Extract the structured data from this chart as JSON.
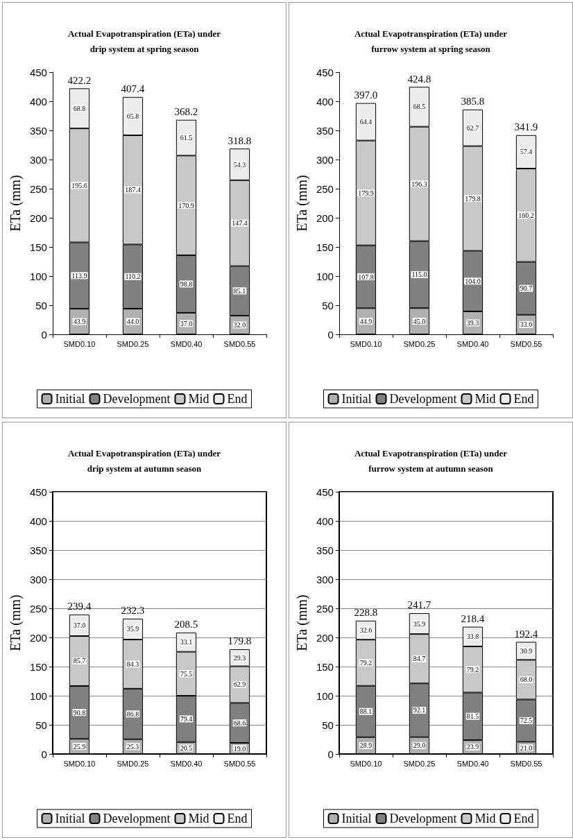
{
  "chart_data": [
    {
      "type": "bar",
      "stacked": true,
      "title": "Actual Evapotranspiration (ETa) under\ndrip system at spring season",
      "ylabel": "ETa (mm)",
      "categories": [
        "SMD0.10",
        "SMD0.25",
        "SMD0.40",
        "SMD0.55"
      ],
      "series": [
        {
          "name": "Initial",
          "color": "#b0b0b0",
          "values": [
            43.9,
            44.0,
            37.0,
            32.0
          ],
          "value_labels": [
            "43.9",
            "44.0",
            "37.0",
            "32.0"
          ]
        },
        {
          "name": "Development",
          "color": "#808080",
          "values": [
            113.9,
            110.2,
            98.8,
            85.1
          ]
        },
        {
          "name": "Mid",
          "color": "#c8c8c8",
          "values": [
            195.6,
            187.4,
            170.9,
            147.4
          ]
        },
        {
          "name": "End",
          "color": "#ececec",
          "values": [
            68.8,
            65.8,
            61.5,
            54.3
          ]
        }
      ],
      "totals": [
        "422.2",
        "407.4",
        "368.2",
        "318.8"
      ],
      "ylim": [
        0,
        450
      ],
      "yticks": [
        0,
        50,
        100,
        150,
        200,
        250,
        300,
        350,
        400,
        450
      ],
      "grid": false,
      "legend": "bottom",
      "data_labels": true
    },
    {
      "type": "bar",
      "stacked": true,
      "title": "Actual Evapotranspiration (ETa) under\nfurrow system at spring season",
      "ylabel": "ETa (mm)",
      "categories": [
        "SMD0.10",
        "SMD0.25",
        "SMD0.40",
        "SMD0.55"
      ],
      "series": [
        {
          "name": "Initial",
          "color": "#b0b0b0",
          "values": [
            44.9,
            45.0,
            39.3,
            33.6
          ],
          "value_labels": [
            "44.9",
            "45.0",
            "39.3",
            "33.6"
          ]
        },
        {
          "name": "Development",
          "color": "#808080",
          "values": [
            107.8,
            115.0,
            104.0,
            90.7
          ],
          "value_labels": [
            "107.8",
            "115.0",
            "104.0",
            "90.7"
          ]
        },
        {
          "name": "Mid",
          "color": "#c8c8c8",
          "values": [
            179.9,
            196.3,
            179.8,
            160.2
          ]
        },
        {
          "name": "End",
          "color": "#ececec",
          "values": [
            64.4,
            68.5,
            62.7,
            57.4
          ]
        }
      ],
      "totals": [
        "397.0",
        "424.8",
        "385.8",
        "341.9"
      ],
      "ylim": [
        0,
        450
      ],
      "yticks": [
        0,
        50,
        100,
        150,
        200,
        250,
        300,
        350,
        400,
        450
      ],
      "grid": false,
      "legend": "bottom",
      "data_labels": true
    },
    {
      "type": "bar",
      "stacked": true,
      "title": "Actual Evapotranspiration (ETa) under\ndrip system at autumn season",
      "ylabel": "ETa (mm)",
      "categories": [
        "SMD0.10",
        "SMD0.25",
        "SMD0.40",
        "SMD0.55"
      ],
      "series": [
        {
          "name": "Initial",
          "color": "#b0b0b0",
          "values": [
            25.9,
            25.3,
            20.5,
            19.0
          ],
          "value_labels": [
            "25.9",
            "25.3",
            "20.5",
            "19.0"
          ]
        },
        {
          "name": "Development",
          "color": "#808080",
          "values": [
            90.8,
            86.8,
            79.4,
            68.6
          ]
        },
        {
          "name": "Mid",
          "color": "#c8c8c8",
          "values": [
            85.7,
            84.3,
            75.5,
            62.9
          ]
        },
        {
          "name": "End",
          "color": "#ececec",
          "values": [
            37.0,
            35.9,
            33.1,
            29.3
          ],
          "value_labels": [
            "37.0",
            "35.9",
            "33.1",
            "29.3"
          ]
        }
      ],
      "totals": [
        "239.4",
        "232.3",
        "208.5",
        "179.8"
      ],
      "ylim": [
        0,
        450
      ],
      "yticks": [
        0,
        50,
        100,
        150,
        200,
        250,
        300,
        350,
        400,
        450
      ],
      "grid": "y",
      "legend": "bottom",
      "data_labels": true
    },
    {
      "type": "bar",
      "stacked": true,
      "title": "Actual Evapotranspiration (ETa) under\nfurrow system at autumn season",
      "ylabel": "ETa (mm)",
      "categories": [
        "SMD0.10",
        "SMD0.25",
        "SMD0.40",
        "SMD0.55"
      ],
      "series": [
        {
          "name": "Initial",
          "color": "#b0b0b0",
          "values": [
            28.9,
            29.0,
            23.9,
            21.0
          ],
          "value_labels": [
            "28.9",
            "29.0",
            "23.9",
            "21.0"
          ]
        },
        {
          "name": "Development",
          "color": "#808080",
          "values": [
            88.1,
            92.1,
            81.5,
            72.5
          ]
        },
        {
          "name": "Mid",
          "color": "#c8c8c8",
          "values": [
            79.2,
            84.7,
            79.2,
            68.0
          ],
          "value_labels": [
            "79.2",
            "84.7",
            "79.2",
            "68.0"
          ]
        },
        {
          "name": "End",
          "color": "#ececec",
          "values": [
            32.6,
            35.9,
            33.8,
            30.9
          ]
        }
      ],
      "totals": [
        "228.8",
        "241.7",
        "218.4",
        "192.4"
      ],
      "ylim": [
        0,
        450
      ],
      "yticks": [
        0,
        50,
        100,
        150,
        200,
        250,
        300,
        350,
        400,
        450
      ],
      "grid": "y",
      "legend": "bottom",
      "data_labels": true
    }
  ]
}
